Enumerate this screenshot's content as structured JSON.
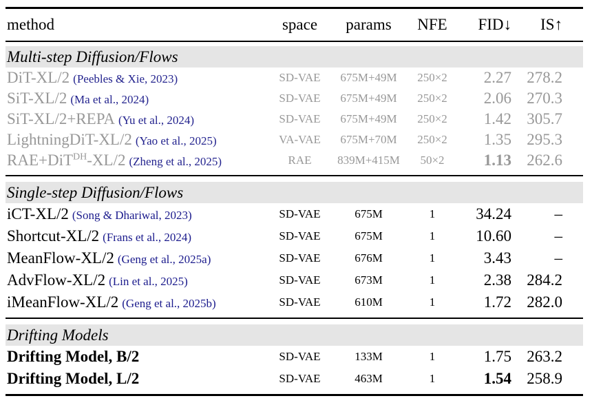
{
  "header": {
    "method": "method",
    "space": "space",
    "params": "params",
    "nfe": "NFE",
    "fid": "FID↓",
    "is": "IS↑"
  },
  "sections": [
    {
      "title": "Multi-step Diffusion/Flows",
      "rows": [
        {
          "name": "DiT-XL/2",
          "cite": "(Peebles & Xie, 2023)",
          "space": "SD-VAE",
          "params": "675M+49M",
          "nfe": "250×2",
          "fid": "2.27",
          "is": "278.2"
        },
        {
          "name": "SiT-XL/2",
          "cite": "(Ma et al., 2024)",
          "space": "SD-VAE",
          "params": "675M+49M",
          "nfe": "250×2",
          "fid": "2.06",
          "is": "270.3"
        },
        {
          "name": "SiT-XL/2+REPA",
          "cite": "(Yu et al., 2024)",
          "space": "SD-VAE",
          "params": "675M+49M",
          "nfe": "250×2",
          "fid": "1.42",
          "is": "305.7"
        },
        {
          "name": "LightningDiT-XL/2",
          "cite": "(Yao et al., 2025)",
          "space": "VA-VAE",
          "params": "675M+70M",
          "nfe": "250×2",
          "fid": "1.35",
          "is": "295.3"
        },
        {
          "name": "RAE+DiT",
          "name_sup": "DH",
          "name_post": "-XL/2",
          "cite": "(Zheng et al., 2025)",
          "space": "RAE",
          "params": "839M+415M",
          "nfe": "50×2",
          "fid": "1.13",
          "is": "262.6"
        }
      ]
    },
    {
      "title": "Single-step Diffusion/Flows",
      "rows": [
        {
          "name": "iCT-XL/2",
          "cite": "(Song & Dhariwal, 2023)",
          "space": "SD-VAE",
          "params": "675M",
          "nfe": "1",
          "fid": "34.24",
          "is": "–"
        },
        {
          "name": "Shortcut-XL/2",
          "cite": "(Frans et al., 2024)",
          "space": "SD-VAE",
          "params": "675M",
          "nfe": "1",
          "fid": "10.60",
          "is": "–"
        },
        {
          "name": "MeanFlow-XL/2",
          "cite": "(Geng et al., 2025a)",
          "space": "SD-VAE",
          "params": "676M",
          "nfe": "1",
          "fid": "3.43",
          "is": "–"
        },
        {
          "name": "AdvFlow-XL/2",
          "cite": "(Lin et al., 2025)",
          "space": "SD-VAE",
          "params": "673M",
          "nfe": "1",
          "fid": "2.38",
          "is": "284.2"
        },
        {
          "name": "iMeanFlow-XL/2",
          "cite": "(Geng et al., 2025b)",
          "space": "SD-VAE",
          "params": "610M",
          "nfe": "1",
          "fid": "1.72",
          "is": "282.0"
        }
      ]
    },
    {
      "title": "Drifting Models",
      "rows": [
        {
          "name": "Drifting Model, B/2",
          "space": "SD-VAE",
          "params": "133M",
          "nfe": "1",
          "fid": "1.75",
          "is": "263.2"
        },
        {
          "name": "Drifting Model, L/2",
          "space": "SD-VAE",
          "params": "463M",
          "nfe": "1",
          "fid": "1.54",
          "is": "258.9"
        }
      ]
    }
  ],
  "colors": {
    "text": "#000000",
    "muted_text": "#989898",
    "citation_link": "#1a1a8c",
    "section_band_bg": "#e5e5e5",
    "rule": "#000000"
  }
}
